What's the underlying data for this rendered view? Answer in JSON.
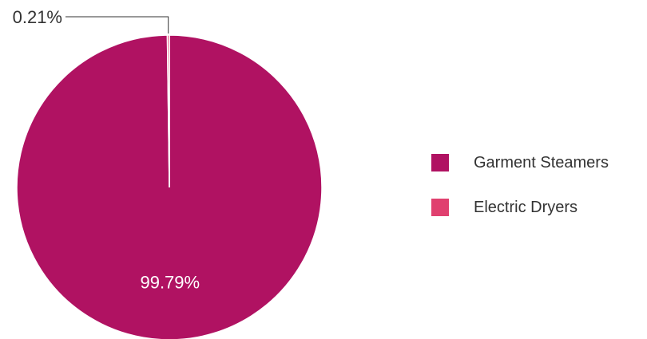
{
  "chart_data": {
    "type": "pie",
    "title": "",
    "legend_placement": "right",
    "slices": [
      {
        "name": "Garment Steamers",
        "value": 99.79,
        "label": "99.79%",
        "color": "#b01262"
      },
      {
        "name": "Electric Dryers",
        "value": 0.21,
        "label": "0.21%",
        "color": "#e0406f"
      }
    ]
  },
  "legend": {
    "items": [
      {
        "label": "Garment Steamers",
        "color": "#b01262"
      },
      {
        "label": "Electric Dryers",
        "color": "#e0406f"
      }
    ]
  }
}
